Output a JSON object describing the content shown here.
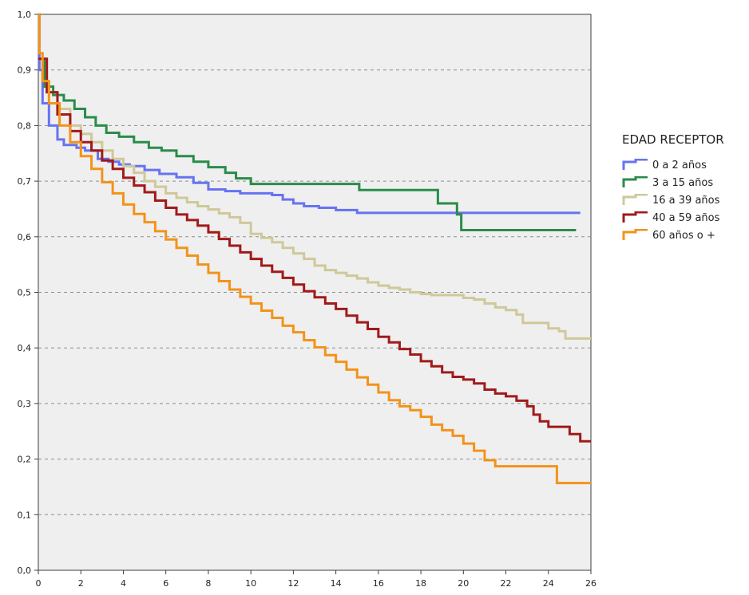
{
  "chart_data": {
    "type": "line",
    "title": "",
    "xlabel": "",
    "ylabel": "",
    "xlim": [
      0,
      26
    ],
    "ylim": [
      0,
      1
    ],
    "x_ticks": [
      "0",
      "2",
      "4",
      "6",
      "8",
      "10",
      "12",
      "14",
      "16",
      "18",
      "20",
      "22",
      "24",
      "26"
    ],
    "y_ticks": [
      "0,0",
      "0,1",
      "0,2",
      "0,3",
      "0,4",
      "0,5",
      "0,6",
      "0,7",
      "0,8",
      "0,9",
      "1,0"
    ],
    "grid": "horizontal dashed",
    "legend": {
      "title": "EDAD RECEPTOR",
      "position": "right"
    },
    "series": [
      {
        "name": "0 a 2 años",
        "color": "#6673f2",
        "points": [
          [
            0,
            1.0
          ],
          [
            0.05,
            0.9
          ],
          [
            0.2,
            0.84
          ],
          [
            0.5,
            0.8
          ],
          [
            0.9,
            0.775
          ],
          [
            1.2,
            0.765
          ],
          [
            1.8,
            0.76
          ],
          [
            2.2,
            0.755
          ],
          [
            2.8,
            0.74
          ],
          [
            3.3,
            0.735
          ],
          [
            3.8,
            0.73
          ],
          [
            4.3,
            0.727
          ],
          [
            5.0,
            0.72
          ],
          [
            5.7,
            0.713
          ],
          [
            6.5,
            0.707
          ],
          [
            7.3,
            0.697
          ],
          [
            8.0,
            0.685
          ],
          [
            8.8,
            0.682
          ],
          [
            9.5,
            0.678
          ],
          [
            10.3,
            0.678
          ],
          [
            11.0,
            0.675
          ],
          [
            11.5,
            0.667
          ],
          [
            12.0,
            0.66
          ],
          [
            12.5,
            0.655
          ],
          [
            13.2,
            0.652
          ],
          [
            14.0,
            0.648
          ],
          [
            15.0,
            0.643
          ],
          [
            16.0,
            0.643
          ],
          [
            18.0,
            0.643
          ],
          [
            20.0,
            0.643
          ],
          [
            22.0,
            0.643
          ],
          [
            24.0,
            0.643
          ],
          [
            25.5,
            0.643
          ]
        ]
      },
      {
        "name": "3 a 15 años",
        "color": "#2a8c4a",
        "points": [
          [
            0,
            0.92
          ],
          [
            0.3,
            0.87
          ],
          [
            0.7,
            0.855
          ],
          [
            1.2,
            0.845
          ],
          [
            1.7,
            0.83
          ],
          [
            2.2,
            0.815
          ],
          [
            2.7,
            0.8
          ],
          [
            3.2,
            0.787
          ],
          [
            3.8,
            0.78
          ],
          [
            4.5,
            0.77
          ],
          [
            5.2,
            0.76
          ],
          [
            5.8,
            0.755
          ],
          [
            6.5,
            0.745
          ],
          [
            7.3,
            0.735
          ],
          [
            8.0,
            0.725
          ],
          [
            8.8,
            0.715
          ],
          [
            9.3,
            0.705
          ],
          [
            10.0,
            0.695
          ],
          [
            12.0,
            0.695
          ],
          [
            14.0,
            0.695
          ],
          [
            15.1,
            0.695
          ],
          [
            15.1,
            0.684
          ],
          [
            17.0,
            0.684
          ],
          [
            18.8,
            0.684
          ],
          [
            18.8,
            0.66
          ],
          [
            19.7,
            0.66
          ],
          [
            19.7,
            0.64
          ],
          [
            19.9,
            0.64
          ],
          [
            19.9,
            0.612
          ],
          [
            22.0,
            0.612
          ],
          [
            24.0,
            0.612
          ],
          [
            25.3,
            0.612
          ]
        ]
      },
      {
        "name": "16 a 39 años",
        "color": "#cfc89a",
        "points": [
          [
            0,
            0.92
          ],
          [
            0.4,
            0.86
          ],
          [
            0.9,
            0.83
          ],
          [
            1.5,
            0.8
          ],
          [
            2.0,
            0.785
          ],
          [
            2.5,
            0.77
          ],
          [
            3.0,
            0.755
          ],
          [
            3.5,
            0.74
          ],
          [
            4.0,
            0.727
          ],
          [
            4.5,
            0.715
          ],
          [
            5.0,
            0.7
          ],
          [
            5.5,
            0.69
          ],
          [
            6.0,
            0.678
          ],
          [
            6.5,
            0.67
          ],
          [
            7.0,
            0.662
          ],
          [
            7.5,
            0.655
          ],
          [
            8.0,
            0.649
          ],
          [
            8.5,
            0.642
          ],
          [
            9.0,
            0.635
          ],
          [
            9.5,
            0.625
          ],
          [
            10.0,
            0.605
          ],
          [
            10.5,
            0.598
          ],
          [
            11.0,
            0.59
          ],
          [
            11.5,
            0.58
          ],
          [
            12.0,
            0.57
          ],
          [
            12.5,
            0.56
          ],
          [
            13.0,
            0.548
          ],
          [
            13.5,
            0.54
          ],
          [
            14.0,
            0.535
          ],
          [
            14.5,
            0.53
          ],
          [
            15.0,
            0.525
          ],
          [
            15.5,
            0.518
          ],
          [
            16.0,
            0.512
          ],
          [
            16.5,
            0.508
          ],
          [
            17.0,
            0.505
          ],
          [
            17.5,
            0.5
          ],
          [
            18.0,
            0.497
          ],
          [
            18.5,
            0.495
          ],
          [
            19.0,
            0.495
          ],
          [
            19.7,
            0.495
          ],
          [
            20.0,
            0.49
          ],
          [
            20.5,
            0.487
          ],
          [
            21.0,
            0.48
          ],
          [
            21.5,
            0.473
          ],
          [
            22.0,
            0.468
          ],
          [
            22.5,
            0.46
          ],
          [
            22.8,
            0.445
          ],
          [
            23.0,
            0.445
          ],
          [
            23.7,
            0.445
          ],
          [
            24.0,
            0.435
          ],
          [
            24.5,
            0.43
          ],
          [
            24.8,
            0.417
          ],
          [
            26.0,
            0.417
          ]
        ]
      },
      {
        "name": "40 a 59 años",
        "color": "#a11a1a",
        "points": [
          [
            0,
            0.92
          ],
          [
            0.4,
            0.86
          ],
          [
            0.9,
            0.82
          ],
          [
            1.5,
            0.79
          ],
          [
            2.0,
            0.77
          ],
          [
            2.5,
            0.755
          ],
          [
            3.0,
            0.737
          ],
          [
            3.5,
            0.722
          ],
          [
            4.0,
            0.706
          ],
          [
            4.5,
            0.692
          ],
          [
            5.0,
            0.68
          ],
          [
            5.5,
            0.665
          ],
          [
            6.0,
            0.652
          ],
          [
            6.5,
            0.64
          ],
          [
            7.0,
            0.63
          ],
          [
            7.5,
            0.62
          ],
          [
            8.0,
            0.608
          ],
          [
            8.5,
            0.596
          ],
          [
            9.0,
            0.584
          ],
          [
            9.5,
            0.572
          ],
          [
            10.0,
            0.56
          ],
          [
            10.5,
            0.548
          ],
          [
            11.0,
            0.537
          ],
          [
            11.5,
            0.526
          ],
          [
            12.0,
            0.514
          ],
          [
            12.5,
            0.502
          ],
          [
            13.0,
            0.491
          ],
          [
            13.5,
            0.48
          ],
          [
            14.0,
            0.47
          ],
          [
            14.5,
            0.458
          ],
          [
            15.0,
            0.446
          ],
          [
            15.5,
            0.434
          ],
          [
            16.0,
            0.42
          ],
          [
            16.5,
            0.41
          ],
          [
            17.0,
            0.398
          ],
          [
            17.5,
            0.388
          ],
          [
            18.0,
            0.376
          ],
          [
            18.5,
            0.367
          ],
          [
            19.0,
            0.356
          ],
          [
            19.5,
            0.348
          ],
          [
            20.0,
            0.343
          ],
          [
            20.5,
            0.336
          ],
          [
            21.0,
            0.325
          ],
          [
            21.5,
            0.318
          ],
          [
            22.0,
            0.313
          ],
          [
            22.5,
            0.305
          ],
          [
            23.0,
            0.295
          ],
          [
            23.3,
            0.28
          ],
          [
            23.6,
            0.268
          ],
          [
            24.0,
            0.258
          ],
          [
            24.8,
            0.258
          ],
          [
            25.0,
            0.245
          ],
          [
            25.3,
            0.245
          ],
          [
            25.5,
            0.232
          ],
          [
            26.0,
            0.232
          ]
        ]
      },
      {
        "name": "60 años o +",
        "color": "#f3931a",
        "points": [
          [
            0,
            1.0
          ],
          [
            0.05,
            0.93
          ],
          [
            0.2,
            0.88
          ],
          [
            0.5,
            0.84
          ],
          [
            1.0,
            0.8
          ],
          [
            1.5,
            0.77
          ],
          [
            2.0,
            0.745
          ],
          [
            2.5,
            0.722
          ],
          [
            3.0,
            0.698
          ],
          [
            3.5,
            0.678
          ],
          [
            4.0,
            0.658
          ],
          [
            4.5,
            0.641
          ],
          [
            5.0,
            0.626
          ],
          [
            5.5,
            0.61
          ],
          [
            6.0,
            0.595
          ],
          [
            6.5,
            0.58
          ],
          [
            7.0,
            0.566
          ],
          [
            7.5,
            0.55
          ],
          [
            8.0,
            0.535
          ],
          [
            8.5,
            0.52
          ],
          [
            9.0,
            0.505
          ],
          [
            9.5,
            0.492
          ],
          [
            10.0,
            0.48
          ],
          [
            10.5,
            0.467
          ],
          [
            11.0,
            0.454
          ],
          [
            11.5,
            0.44
          ],
          [
            12.0,
            0.428
          ],
          [
            12.5,
            0.414
          ],
          [
            13.0,
            0.401
          ],
          [
            13.5,
            0.387
          ],
          [
            14.0,
            0.375
          ],
          [
            14.5,
            0.361
          ],
          [
            15.0,
            0.347
          ],
          [
            15.5,
            0.334
          ],
          [
            16.0,
            0.32
          ],
          [
            16.5,
            0.306
          ],
          [
            17.0,
            0.295
          ],
          [
            17.5,
            0.288
          ],
          [
            18.0,
            0.276
          ],
          [
            18.5,
            0.262
          ],
          [
            19.0,
            0.252
          ],
          [
            19.5,
            0.242
          ],
          [
            20.0,
            0.228
          ],
          [
            20.5,
            0.215
          ],
          [
            21.0,
            0.198
          ],
          [
            21.5,
            0.187
          ],
          [
            22.0,
            0.187
          ],
          [
            23.0,
            0.187
          ],
          [
            24.0,
            0.187
          ],
          [
            24.4,
            0.187
          ],
          [
            24.4,
            0.157
          ],
          [
            26.0,
            0.157
          ]
        ]
      }
    ]
  }
}
